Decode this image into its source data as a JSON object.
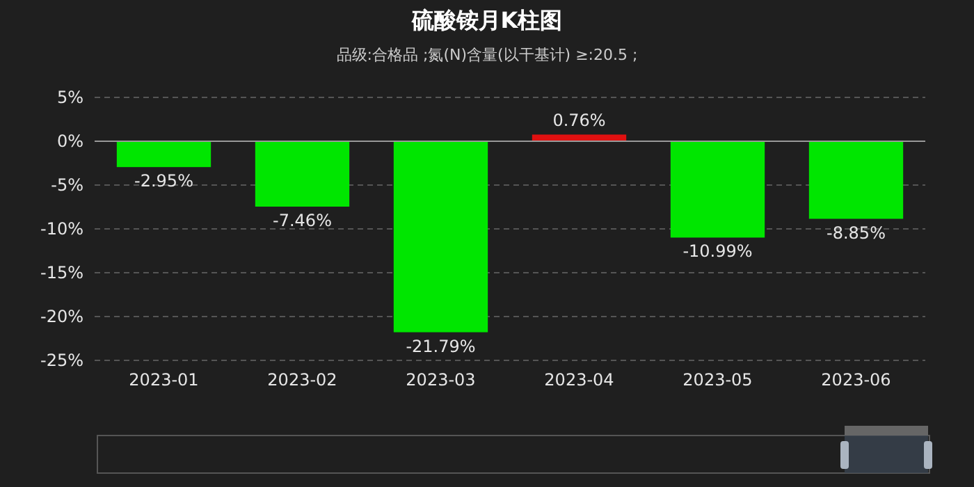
{
  "chart_data": {
    "type": "bar",
    "title": "硫酸铵月K柱图",
    "subtitle": "品级:合格品 ;氮(N)含量(以干基计) ≥:20.5 ;",
    "categories": [
      "2023-01",
      "2023-02",
      "2023-03",
      "2023-04",
      "2023-05",
      "2023-06"
    ],
    "values": [
      -2.95,
      -7.46,
      -21.79,
      0.76,
      -10.99,
      -8.85
    ],
    "colors": [
      "#00e600",
      "#00e600",
      "#00e600",
      "#e01010",
      "#00e600",
      "#00e600"
    ],
    "value_labels": [
      "-2.95%",
      "-7.46%",
      "-21.79%",
      "0.76%",
      "-10.99%",
      "-8.85%"
    ],
    "ylim": [
      -25,
      5
    ],
    "yticks": [
      {
        "value": -25,
        "label": "-25%"
      },
      {
        "value": -20,
        "label": "-20%"
      },
      {
        "value": -15,
        "label": "-15%"
      },
      {
        "value": -10,
        "label": "-10%"
      },
      {
        "value": -5,
        "label": "-5%"
      },
      {
        "value": 0,
        "label": "0%"
      },
      {
        "value": 5,
        "label": "5%"
      }
    ],
    "grid": "y"
  }
}
